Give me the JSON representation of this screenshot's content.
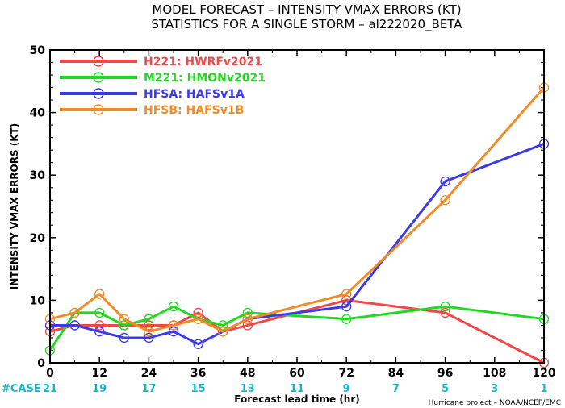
{
  "chart_data": {
    "type": "line",
    "title_line1": "MODEL FORECAST – INTENSITY VMAX ERRORS (KT)",
    "title_line2": "STATISTICS FOR A SINGLE STORM – al222020_BETA",
    "xlabel": "Forecast lead time (hr)",
    "ylabel": "INTENSITY VMAX ERRORS (KT)",
    "xlim": [
      0,
      120
    ],
    "ylim": [
      0,
      50
    ],
    "x_ticks": [
      0,
      12,
      24,
      36,
      48,
      60,
      72,
      84,
      96,
      108,
      120
    ],
    "y_ticks": [
      0,
      10,
      20,
      30,
      40,
      50
    ],
    "legend_position": "top-left",
    "series": [
      {
        "name": "H221: HWRFv2021",
        "color": "#f04848",
        "x": [
          0,
          6,
          12,
          18,
          24,
          30,
          36,
          42,
          48,
          72,
          96,
          120
        ],
        "values": [
          5,
          6,
          6,
          6,
          6,
          6,
          8,
          5,
          6,
          10,
          8,
          0
        ]
      },
      {
        "name": "M221: HMONv2021",
        "color": "#22d822",
        "x": [
          0,
          6,
          12,
          18,
          24,
          30,
          36,
          42,
          48,
          72,
          96,
          120
        ],
        "values": [
          2,
          8,
          8,
          6,
          7,
          9,
          7,
          6,
          8,
          7,
          9,
          7
        ]
      },
      {
        "name": "HFSA: HAFSv1A",
        "color": "#3a3ae8",
        "x": [
          0,
          6,
          12,
          18,
          24,
          30,
          36,
          42,
          48,
          72,
          96,
          120
        ],
        "values": [
          6,
          6,
          5,
          4,
          4,
          5,
          3,
          5,
          7,
          9,
          29,
          35
        ]
      },
      {
        "name": "HFSB: HAFSv1B",
        "color": "#f08c28",
        "x": [
          0,
          6,
          12,
          18,
          24,
          30,
          36,
          42,
          48,
          72,
          96,
          120
        ],
        "values": [
          7,
          8,
          11,
          7,
          5,
          6,
          7,
          5,
          7,
          11,
          26,
          44
        ]
      }
    ],
    "cases_label": "#CASE",
    "cases": [
      {
        "x": 0,
        "n": "21"
      },
      {
        "x": 12,
        "n": "19"
      },
      {
        "x": 24,
        "n": "17"
      },
      {
        "x": 36,
        "n": "15"
      },
      {
        "x": 48,
        "n": "13"
      },
      {
        "x": 60,
        "n": "11"
      },
      {
        "x": 72,
        "n": "9"
      },
      {
        "x": 84,
        "n": "7"
      },
      {
        "x": 96,
        "n": "5"
      },
      {
        "x": 108,
        "n": "3"
      },
      {
        "x": 120,
        "n": "1"
      }
    ],
    "credit": "Hurricane project – NOAA/NCEP/EMC"
  }
}
